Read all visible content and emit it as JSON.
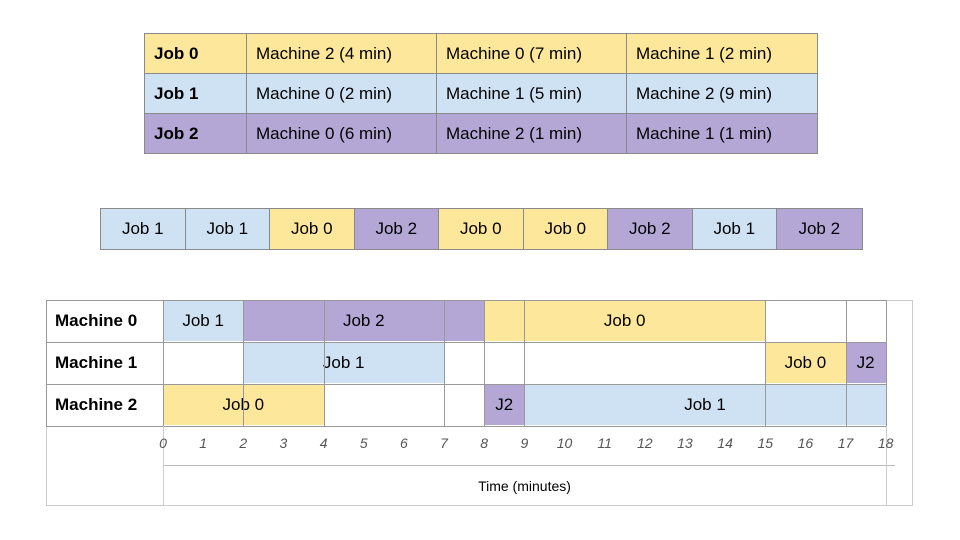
{
  "jobs_table": [
    {
      "job": "Job 0",
      "color": "#fde79a",
      "ops": [
        "Machine 2 (4 min)",
        "Machine 0 (7 min)",
        "Machine 1 (2 min)"
      ]
    },
    {
      "job": "Job 1",
      "color": "#cfe2f3",
      "ops": [
        "Machine 0 (2 min)",
        "Machine 1 (5 min)",
        "Machine 2 (9 min)"
      ]
    },
    {
      "job": "Job 2",
      "color": "#b4a7d6",
      "ops": [
        "Machine 0 (6 min)",
        "Machine 2 (1 min)",
        "Machine 1 (1 min)"
      ]
    }
  ],
  "sequence": [
    "Job 1",
    "Job 1",
    "Job 0",
    "Job 2",
    "Job 0",
    "Job 0",
    "Job 2",
    "Job 1",
    "Job 2"
  ],
  "gantt": {
    "machines": [
      "Machine 0",
      "Machine 1",
      "Machine 2"
    ],
    "tasks": [
      {
        "machine": 0,
        "label": "Job 1",
        "job": 1,
        "start": 0,
        "end": 2
      },
      {
        "machine": 0,
        "label": "Job 2",
        "job": 2,
        "start": 2,
        "end": 8
      },
      {
        "machine": 0,
        "label": "Job 0",
        "job": 0,
        "start": 8,
        "end": 15
      },
      {
        "machine": 1,
        "label": "Job 1",
        "job": 1,
        "start": 2,
        "end": 7
      },
      {
        "machine": 1,
        "label": "Job 0",
        "job": 0,
        "start": 15,
        "end": 17
      },
      {
        "machine": 1,
        "label": "J2",
        "job": 2,
        "start": 17,
        "end": 18
      },
      {
        "machine": 2,
        "label": "Job 0",
        "job": 0,
        "start": 0,
        "end": 4
      },
      {
        "machine": 2,
        "label": "J2",
        "job": 2,
        "start": 8,
        "end": 9
      },
      {
        "machine": 2,
        "label": "Job 1",
        "job": 1,
        "start": 9,
        "end": 18
      }
    ],
    "ticks": [
      "0",
      "1",
      "2",
      "3",
      "4",
      "5",
      "6",
      "7",
      "8",
      "9",
      "10",
      "11",
      "12",
      "13",
      "14",
      "15",
      "16",
      "17",
      "18"
    ],
    "axis_title": "Time (minutes)",
    "xlim": [
      0,
      18
    ]
  },
  "colors": {
    "job0": "#fde79a",
    "job1": "#cfe2f3",
    "job2": "#b4a7d6",
    "grid": "#999999"
  }
}
